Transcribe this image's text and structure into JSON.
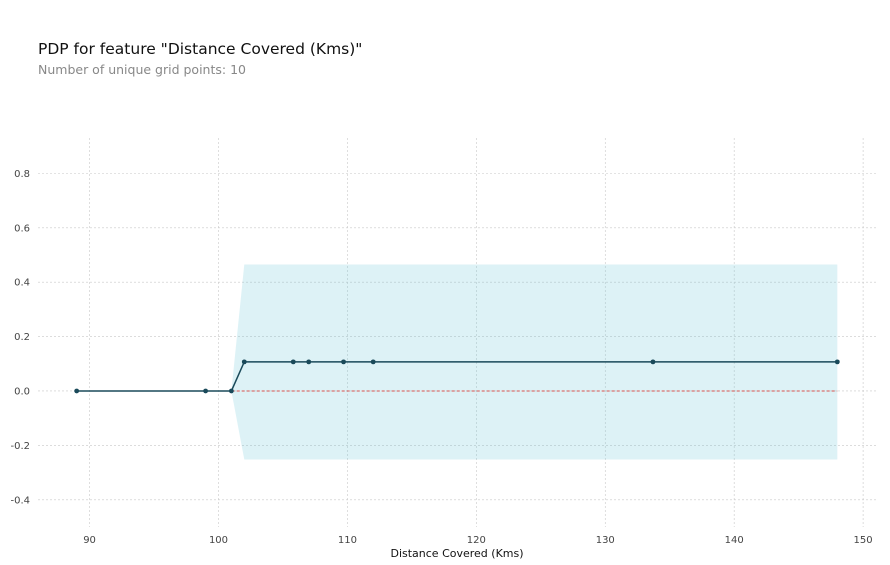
{
  "chart_data": {
    "type": "line",
    "title": "PDP for feature \"Distance Covered (Kms)\"",
    "subtitle": "Number of unique grid points: 10",
    "xlabel": "Distance Covered (Kms)",
    "ylabel": "",
    "xlim": [
      86.0,
      151.0
    ],
    "ylim": [
      -0.5,
      0.93
    ],
    "xticks": [
      90,
      100,
      110,
      120,
      130,
      140,
      150
    ],
    "yticks": [
      -0.4,
      -0.2,
      0.0,
      0.2,
      0.4,
      0.6,
      0.8
    ],
    "grid": true,
    "series": [
      {
        "x": [
          89,
          99,
          101,
          102,
          105.8,
          107,
          109.7,
          112,
          133.7,
          148
        ],
        "values": [
          0.0,
          0.0,
          0.0,
          0.107,
          0.107,
          0.107,
          0.107,
          0.107,
          0.107,
          0.107
        ],
        "color": "#1a4a5a"
      }
    ],
    "confidence_band": {
      "x": [
        101,
        102,
        148
      ],
      "upper": [
        0.0,
        0.465,
        0.465
      ],
      "lower": [
        0.0,
        -0.252,
        -0.252
      ],
      "color": "#66c2d7"
    },
    "reference_line": {
      "y": 0.0,
      "color": "#d9534f"
    }
  }
}
